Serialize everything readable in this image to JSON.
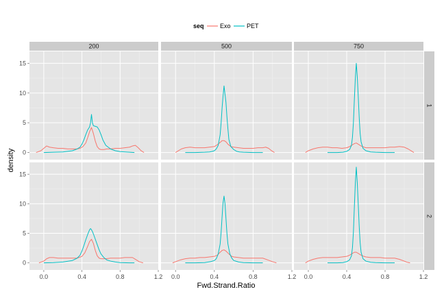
{
  "chart_data": {
    "type": "line",
    "xlabel": "Fwd.Strand.Ratio",
    "ylabel": "density",
    "xlim": [
      -0.15,
      1.2
    ],
    "ylim": [
      -1.2,
      17
    ],
    "x_ticks": [
      "0.0",
      "0.4",
      "0.8",
      "1.2"
    ],
    "y_ticks": [
      "0",
      "5",
      "10",
      "15"
    ],
    "column_facets": [
      "200",
      "500",
      "750"
    ],
    "row_facets": [
      "1",
      "2"
    ],
    "legend": {
      "title": "seq",
      "position": "top",
      "entries": [
        "Exo",
        "PET"
      ]
    },
    "colors": {
      "Exo": "#F8766D",
      "PET": "#00BFC4"
    },
    "grid": true,
    "panels": [
      {
        "row": "1",
        "col": "200",
        "series": [
          {
            "name": "Exo",
            "x": [
              -0.08,
              -0.03,
              0.0,
              0.03,
              0.06,
              0.1,
              0.15,
              0.2,
              0.25,
              0.3,
              0.35,
              0.38,
              0.41,
              0.44,
              0.46,
              0.48,
              0.5,
              0.52,
              0.54,
              0.56,
              0.58,
              0.6,
              0.63,
              0.66,
              0.7,
              0.75,
              0.8,
              0.85,
              0.9,
              0.93,
              0.96,
              0.99,
              1.02,
              1.05
            ],
            "y": [
              0,
              0.3,
              0.7,
              1.1,
              0.9,
              0.8,
              0.7,
              0.7,
              0.6,
              0.6,
              0.6,
              0.7,
              1.0,
              1.6,
              2.5,
              3.5,
              4.2,
              3.2,
              1.9,
              1.0,
              0.6,
              0.5,
              0.5,
              0.6,
              0.6,
              0.7,
              0.7,
              0.8,
              0.9,
              1.1,
              1.2,
              0.8,
              0.3,
              0.0
            ]
          },
          {
            "name": "PET",
            "x": [
              0.0,
              0.1,
              0.2,
              0.3,
              0.35,
              0.38,
              0.4,
              0.42,
              0.44,
              0.46,
              0.48,
              0.49,
              0.5,
              0.51,
              0.52,
              0.54,
              0.56,
              0.58,
              0.6,
              0.62,
              0.65,
              0.7,
              0.75,
              0.8,
              0.9,
              0.95
            ],
            "y": [
              0,
              0.05,
              0.1,
              0.3,
              0.6,
              0.9,
              1.4,
              2.1,
              3.0,
              3.8,
              4.3,
              5.0,
              6.4,
              5.0,
              4.5,
              4.4,
              4.3,
              3.8,
              3.0,
              2.1,
              1.2,
              0.6,
              0.3,
              0.15,
              0.05,
              0
            ]
          }
        ]
      },
      {
        "row": "1",
        "col": "500",
        "series": [
          {
            "name": "Exo",
            "x": [
              0.0,
              0.03,
              0.06,
              0.1,
              0.15,
              0.2,
              0.25,
              0.3,
              0.35,
              0.4,
              0.43,
              0.46,
              0.48,
              0.5,
              0.52,
              0.54,
              0.57,
              0.6,
              0.65,
              0.7,
              0.75,
              0.8,
              0.85,
              0.9,
              0.93,
              0.96,
              0.99,
              1.02
            ],
            "y": [
              0,
              0.3,
              0.6,
              0.8,
              0.9,
              0.8,
              0.8,
              0.8,
              0.9,
              1.0,
              1.3,
              1.7,
              2.0,
              2.0,
              1.8,
              1.4,
              1.0,
              0.9,
              0.8,
              0.7,
              0.7,
              0.7,
              0.8,
              0.8,
              0.9,
              0.7,
              0.3,
              0
            ]
          },
          {
            "name": "PET",
            "x": [
              0.1,
              0.2,
              0.3,
              0.35,
              0.38,
              0.4,
              0.42,
              0.44,
              0.46,
              0.47,
              0.48,
              0.49,
              0.5,
              0.51,
              0.52,
              0.53,
              0.54,
              0.55,
              0.57,
              0.6,
              0.63,
              0.66,
              0.7,
              0.8,
              0.9
            ],
            "y": [
              0,
              0,
              0.05,
              0.1,
              0.2,
              0.3,
              0.6,
              1.2,
              3.0,
              5.0,
              7.5,
              9.5,
              11.2,
              9.8,
              8.4,
              6.0,
              4.0,
              2.2,
              1.0,
              0.5,
              0.2,
              0.1,
              0.05,
              0,
              0
            ]
          }
        ]
      },
      {
        "row": "1",
        "col": "750",
        "series": [
          {
            "name": "Exo",
            "x": [
              -0.03,
              0.0,
              0.05,
              0.1,
              0.15,
              0.2,
              0.25,
              0.3,
              0.35,
              0.4,
              0.43,
              0.46,
              0.48,
              0.5,
              0.52,
              0.55,
              0.58,
              0.6,
              0.65,
              0.7,
              0.75,
              0.8,
              0.85,
              0.9,
              0.95,
              1.0,
              1.04,
              1.08,
              1.1
            ],
            "y": [
              0,
              0.3,
              0.6,
              0.8,
              0.9,
              0.9,
              0.8,
              0.8,
              0.7,
              0.8,
              1.0,
              1.3,
              1.5,
              1.6,
              1.4,
              1.1,
              0.9,
              0.8,
              0.8,
              0.8,
              0.8,
              0.8,
              0.9,
              0.9,
              1.0,
              0.9,
              0.6,
              0.2,
              0
            ]
          },
          {
            "name": "PET",
            "x": [
              0.2,
              0.3,
              0.36,
              0.4,
              0.43,
              0.45,
              0.46,
              0.47,
              0.48,
              0.49,
              0.5,
              0.51,
              0.52,
              0.53,
              0.54,
              0.55,
              0.57,
              0.6,
              0.65,
              0.7,
              0.8,
              0.9
            ],
            "y": [
              0,
              0,
              0.05,
              0.2,
              0.5,
              1.2,
              2.6,
              5.0,
              9.0,
              12.5,
              15.0,
              12.8,
              9.5,
              6.0,
              3.2,
              1.8,
              0.7,
              0.3,
              0.1,
              0.05,
              0,
              0
            ]
          }
        ]
      },
      {
        "row": "2",
        "col": "200",
        "series": [
          {
            "name": "Exo",
            "x": [
              -0.05,
              0.0,
              0.03,
              0.06,
              0.1,
              0.15,
              0.2,
              0.25,
              0.3,
              0.35,
              0.4,
              0.43,
              0.46,
              0.48,
              0.5,
              0.52,
              0.54,
              0.56,
              0.58,
              0.6,
              0.65,
              0.7,
              0.75,
              0.8,
              0.85,
              0.9,
              0.93,
              0.96,
              1.0,
              1.04
            ],
            "y": [
              0,
              0.3,
              0.7,
              0.9,
              0.9,
              0.8,
              0.8,
              0.8,
              0.8,
              0.8,
              1.1,
              1.7,
              2.8,
              3.6,
              4.0,
              3.3,
              2.1,
              1.2,
              0.8,
              0.7,
              0.7,
              0.8,
              0.8,
              0.8,
              0.9,
              0.9,
              0.9,
              0.6,
              0.2,
              0
            ]
          },
          {
            "name": "PET",
            "x": [
              0.0,
              0.1,
              0.2,
              0.3,
              0.35,
              0.38,
              0.4,
              0.42,
              0.44,
              0.46,
              0.48,
              0.49,
              0.5,
              0.51,
              0.52,
              0.54,
              0.56,
              0.58,
              0.6,
              0.63,
              0.66,
              0.7,
              0.75,
              0.8,
              0.9,
              0.95
            ],
            "y": [
              0,
              0.05,
              0.15,
              0.4,
              0.8,
              1.3,
              2.0,
              2.9,
              3.9,
              4.8,
              5.6,
              5.8,
              5.6,
              5.3,
              4.9,
              4.0,
              3.1,
              2.2,
              1.5,
              0.9,
              0.5,
              0.3,
              0.15,
              0.05,
              0,
              0
            ]
          }
        ]
      },
      {
        "row": "2",
        "col": "500",
        "series": [
          {
            "name": "Exo",
            "x": [
              -0.03,
              0.0,
              0.05,
              0.1,
              0.15,
              0.2,
              0.25,
              0.3,
              0.35,
              0.4,
              0.43,
              0.46,
              0.48,
              0.5,
              0.52,
              0.55,
              0.58,
              0.6,
              0.65,
              0.7,
              0.75,
              0.8,
              0.85,
              0.9,
              0.95,
              1.0,
              1.04
            ],
            "y": [
              0,
              0.2,
              0.5,
              0.7,
              0.8,
              0.8,
              0.9,
              0.9,
              1.0,
              1.1,
              1.3,
              1.8,
              2.1,
              2.2,
              2.0,
              1.5,
              1.1,
              1.0,
              0.9,
              0.8,
              0.8,
              0.8,
              0.8,
              0.8,
              0.5,
              0.2,
              0
            ]
          },
          {
            "name": "PET",
            "x": [
              0.1,
              0.2,
              0.3,
              0.36,
              0.4,
              0.42,
              0.44,
              0.46,
              0.47,
              0.48,
              0.49,
              0.5,
              0.51,
              0.52,
              0.53,
              0.54,
              0.56,
              0.58,
              0.6,
              0.65,
              0.7,
              0.8,
              0.9
            ],
            "y": [
              0,
              0,
              0.05,
              0.2,
              0.4,
              0.7,
              1.5,
              3.2,
              5.2,
              7.8,
              10.2,
              11.3,
              10.0,
              7.5,
              5.0,
              3.2,
              1.5,
              0.8,
              0.4,
              0.15,
              0.05,
              0,
              0
            ]
          }
        ]
      },
      {
        "row": "2",
        "col": "750",
        "series": [
          {
            "name": "Exo",
            "x": [
              -0.03,
              0.0,
              0.05,
              0.1,
              0.15,
              0.2,
              0.25,
              0.3,
              0.35,
              0.4,
              0.43,
              0.46,
              0.48,
              0.5,
              0.52,
              0.55,
              0.58,
              0.6,
              0.65,
              0.7,
              0.75,
              0.8,
              0.85,
              0.9,
              0.95,
              1.0,
              1.03,
              1.06
            ],
            "y": [
              0,
              0.3,
              0.6,
              0.8,
              0.9,
              0.9,
              0.9,
              0.9,
              1.0,
              1.1,
              1.3,
              1.6,
              1.8,
              1.8,
              1.6,
              1.3,
              1.1,
              1.0,
              0.9,
              0.9,
              0.9,
              0.8,
              0.8,
              0.8,
              0.6,
              0.3,
              0.1,
              0
            ]
          },
          {
            "name": "PET",
            "x": [
              0.2,
              0.3,
              0.36,
              0.4,
              0.43,
              0.45,
              0.46,
              0.47,
              0.48,
              0.49,
              0.5,
              0.51,
              0.52,
              0.53,
              0.54,
              0.55,
              0.57,
              0.6,
              0.65,
              0.7,
              0.8,
              0.9
            ],
            "y": [
              0,
              0,
              0.05,
              0.2,
              0.5,
              1.2,
              2.6,
              5.2,
              9.6,
              13.5,
              16.2,
              13.6,
              10.0,
              6.3,
              3.4,
              1.8,
              0.7,
              0.3,
              0.1,
              0.05,
              0,
              0
            ]
          }
        ]
      }
    ]
  }
}
